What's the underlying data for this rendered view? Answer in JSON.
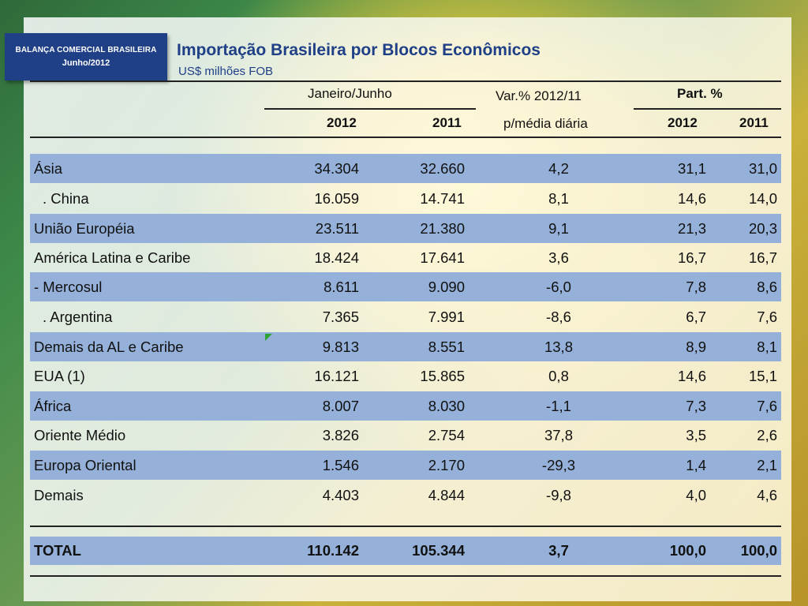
{
  "badge": {
    "line1": "BALANÇA COMERCIAL BRASILEIRA",
    "line2": "Junho/2012"
  },
  "title": "Importação Brasileira por Blocos Econômicos",
  "subtitle": "US$ milhões FOB",
  "headers": {
    "period": "Janeiro/Junho",
    "var_line1": "Var.% 2012/11",
    "var_line2": "p/média diária",
    "part": "Part. %",
    "y2012": "2012",
    "y2011": "2011",
    "p2012": "2012",
    "p2011": "2011"
  },
  "rows": [
    {
      "name": "Ásia",
      "v2012": "34.304",
      "v2011": "32.660",
      "var": "4,2",
      "p2012": "31,1",
      "p2011": "31,0"
    },
    {
      "name": ". China",
      "v2012": "16.059",
      "v2011": "14.741",
      "var": "8,1",
      "p2012": "14,6",
      "p2011": "14,0"
    },
    {
      "name": "União Européia",
      "v2012": "23.511",
      "v2011": "21.380",
      "var": "9,1",
      "p2012": "21,3",
      "p2011": "20,3"
    },
    {
      "name": "América Latina e Caribe",
      "v2012": "18.424",
      "v2011": "17.641",
      "var": "3,6",
      "p2012": "16,7",
      "p2011": "16,7"
    },
    {
      "name": "- Mercosul",
      "v2012": "8.611",
      "v2011": "9.090",
      "var": "-6,0",
      "p2012": "7,8",
      "p2011": "8,6"
    },
    {
      "name": ". Argentina",
      "v2012": "7.365",
      "v2011": "7.991",
      "var": "-8,6",
      "p2012": "6,7",
      "p2011": "7,6"
    },
    {
      "name": "Demais da AL e Caribe",
      "v2012": "9.813",
      "v2011": "8.551",
      "var": "13,8",
      "p2012": "8,9",
      "p2011": "8,1"
    },
    {
      "name": "EUA (1)",
      "v2012": "16.121",
      "v2011": "15.865",
      "var": "0,8",
      "p2012": "14,6",
      "p2011": "15,1"
    },
    {
      "name": "África",
      "v2012": "8.007",
      "v2011": "8.030",
      "var": "-1,1",
      "p2012": "7,3",
      "p2011": "7,6"
    },
    {
      "name": "Oriente Médio",
      "v2012": "3.826",
      "v2011": "2.754",
      "var": "37,8",
      "p2012": "3,5",
      "p2011": "2,6"
    },
    {
      "name": "Europa Oriental",
      "v2012": "1.546",
      "v2011": "2.170",
      "var": "-29,3",
      "p2012": "1,4",
      "p2011": "2,1"
    },
    {
      "name": "Demais",
      "v2012": "4.403",
      "v2011": "4.844",
      "var": "-9,8",
      "p2012": "4,0",
      "p2011": "4,6"
    }
  ],
  "total": {
    "name": "TOTAL",
    "v2012": "110.142",
    "v2011": "105.344",
    "var": "3,7",
    "p2012": "100,0",
    "p2011": "100,0"
  }
}
